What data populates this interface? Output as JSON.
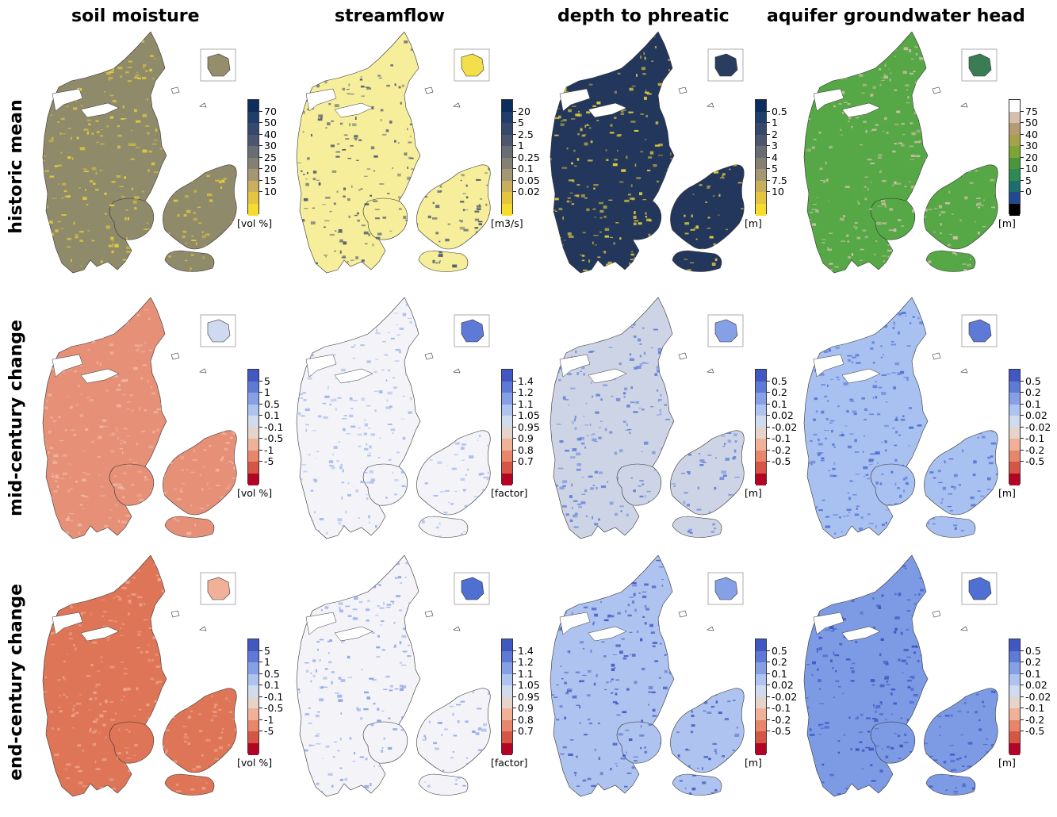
{
  "columns": [
    "soil moisture",
    "streamflow",
    "depth to phreatic",
    "aquifer groundwater head"
  ],
  "rows": [
    "historic mean",
    "mid-century change",
    "end-century change"
  ],
  "colorbars": {
    "soil_hist": {
      "unit": "[vol %]",
      "ticks": [
        "70",
        "50",
        "40",
        "30",
        "25",
        "20",
        "15",
        "10"
      ],
      "colors": [
        "#0d2d5e",
        "#1f3e6b",
        "#34496b",
        "#4c566e",
        "#676d72",
        "#858074",
        "#a69773",
        "#c9ae5c",
        "#e5c43f",
        "#f7dc30"
      ]
    },
    "flow_hist": {
      "unit": "[m3/s]",
      "ticks": [
        "20",
        "5",
        "2.5",
        "1",
        "0.25",
        "0.1",
        "0.05",
        "0.02"
      ],
      "colors": [
        "#0d2d5e",
        "#1f3e6b",
        "#34496b",
        "#4c566e",
        "#676d72",
        "#858074",
        "#a69773",
        "#c9ae5c",
        "#e5c43f",
        "#f7dc30"
      ]
    },
    "depth_hist": {
      "unit": "[m]",
      "ticks": [
        "0.5",
        "1",
        "2",
        "3",
        "4",
        "5",
        "7.5",
        "10"
      ],
      "colors": [
        "#0d2d5e",
        "#1f3e6b",
        "#34496b",
        "#4c566e",
        "#676d72",
        "#858074",
        "#a69773",
        "#c9ae5c",
        "#e5c43f",
        "#f7dc30"
      ]
    },
    "head_hist": {
      "unit": "[m]",
      "ticks": [
        "75",
        "50",
        "40",
        "30",
        "20",
        "10",
        "5",
        "0"
      ],
      "colors": [
        "#ffffff",
        "#d6bfae",
        "#b59c70",
        "#a5a24c",
        "#7ea436",
        "#4b963b",
        "#2e8a55",
        "#1f6e6e",
        "#214a8e",
        "#000000"
      ]
    },
    "soil_change": {
      "unit": "[vol %]",
      "ticks": [
        "5",
        "1",
        "0.5",
        "0.1",
        "-0.1",
        "-0.5",
        "-1",
        "-5"
      ],
      "colors": [
        "#4158c2",
        "#5f7ad6",
        "#86a0e6",
        "#aec3ef",
        "#d0dbee",
        "#e6d3ca",
        "#f1b199",
        "#e7866a",
        "#d65645",
        "#b40426"
      ]
    },
    "flow_change": {
      "unit": "[factor]",
      "ticks": [
        "1.4",
        "1.2",
        "1.1",
        "1.05",
        "0.95",
        "0.9",
        "0.8",
        "0.7"
      ],
      "colors": [
        "#4158c2",
        "#5f7ad6",
        "#86a0e6",
        "#aec3ef",
        "#d0dbee",
        "#e6d3ca",
        "#f1b199",
        "#e7866a",
        "#d65645",
        "#b40426"
      ]
    },
    "depth_change": {
      "unit": "[m]",
      "ticks": [
        "0.5",
        "0.2",
        "0.1",
        "0.02",
        "-0.02",
        "-0.1",
        "-0.2",
        "-0.5"
      ],
      "colors": [
        "#4158c2",
        "#5f7ad6",
        "#86a0e6",
        "#aec3ef",
        "#d0dbee",
        "#e6d3ca",
        "#f1b199",
        "#e7866a",
        "#d65645",
        "#b40426"
      ]
    },
    "head_change": {
      "unit": "[m]",
      "ticks": [
        "0.5",
        "0.2",
        "0.1",
        "0.02",
        "-0.02",
        "-0.1",
        "-0.2",
        "-0.5"
      ],
      "colors": [
        "#4158c2",
        "#5f7ad6",
        "#86a0e6",
        "#aec3ef",
        "#d0dbee",
        "#e6d3ca",
        "#f1b199",
        "#e7866a",
        "#d65645",
        "#b40426"
      ]
    }
  },
  "panels": [
    {
      "name": "soil-moisture-historic-mean-map",
      "colorbar": "soil_hist",
      "fill": "#8f8a6a",
      "texture": "#e8cf3a",
      "inset": "#948e6c"
    },
    {
      "name": "streamflow-historic-mean-map",
      "colorbar": "flow_hist",
      "fill": "#f6ee9a",
      "texture": "#4a5570",
      "inset": "#f2df4a"
    },
    {
      "name": "depth-to-phreatic-historic-mean-map",
      "colorbar": "depth_hist",
      "fill": "#23375c",
      "texture": "#ead23a",
      "inset": "#2b3d5f"
    },
    {
      "name": "aquifer-head-historic-mean-map",
      "colorbar": "head_hist",
      "fill": "#55a845",
      "texture": "#d9bfae",
      "inset": "#3a7d55"
    },
    {
      "name": "soil-moisture-mid-century-change-map",
      "colorbar": "soil_change",
      "fill": "#e69077",
      "texture": "#f1b6a0",
      "inset": "#cfd9ef"
    },
    {
      "name": "streamflow-mid-century-change-map",
      "colorbar": "flow_change",
      "fill": "#f4f4f8",
      "texture": "#9fb6ec",
      "inset": "#5f7ad6"
    },
    {
      "name": "depth-to-phreatic-mid-century-change-map",
      "colorbar": "depth_change",
      "fill": "#cdd4e6",
      "texture": "#5d7bd8",
      "inset": "#86a0e6"
    },
    {
      "name": "aquifer-head-mid-century-change-map",
      "colorbar": "head_change",
      "fill": "#a9c1f0",
      "texture": "#4f6fd3",
      "inset": "#5f7ad6"
    },
    {
      "name": "soil-moisture-end-century-change-map",
      "colorbar": "soil_change",
      "fill": "#df7557",
      "texture": "#eca68c",
      "inset": "#f1b199"
    },
    {
      "name": "streamflow-end-century-change-map",
      "colorbar": "flow_change",
      "fill": "#f4f4f8",
      "texture": "#86a0e6",
      "inset": "#4f6fd3"
    },
    {
      "name": "depth-to-phreatic-end-century-change-map",
      "colorbar": "depth_change",
      "fill": "#aec3ef",
      "texture": "#4158c2",
      "inset": "#86a0e6"
    },
    {
      "name": "aquifer-head-end-century-change-map",
      "colorbar": "head_change",
      "fill": "#7d9ae4",
      "texture": "#3a52c0",
      "inset": "#4f6fd3"
    }
  ]
}
